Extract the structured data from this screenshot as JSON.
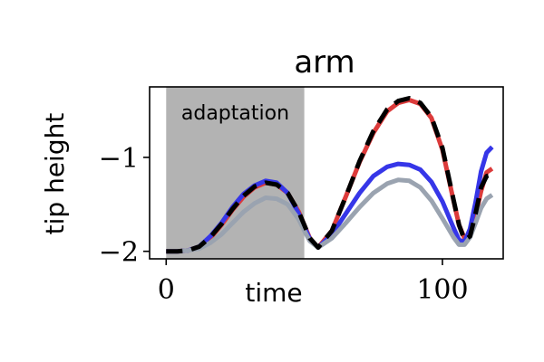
{
  "chart_data": {
    "type": "line",
    "title": "arm",
    "xlabel": "time",
    "ylabel": "tip height",
    "xlim": [
      -6,
      122
    ],
    "ylim": [
      -2.08,
      -0.25
    ],
    "x_ticks": [
      0,
      100
    ],
    "x_tick_labels": [
      "0",
      "100"
    ],
    "y_ticks": [
      -2,
      -1
    ],
    "y_tick_labels": [
      "−2",
      "−1"
    ],
    "grid": false,
    "shaded_region": {
      "label": "adaptation",
      "x_start": 0,
      "x_end": 50,
      "color": "#b3b3b3"
    },
    "x": [
      0,
      4,
      8,
      12,
      16,
      20,
      24,
      28,
      32,
      36,
      40,
      44,
      48,
      50,
      52,
      55,
      60,
      65,
      70,
      75,
      80,
      84,
      88,
      92,
      96,
      100,
      104,
      106,
      108,
      110,
      112,
      114,
      116,
      118
    ],
    "series": [
      {
        "color": "#dc3b3b",
        "width": 5,
        "dash": "",
        "values": [
          -2.0,
          -2.0,
          -1.99,
          -1.95,
          -1.86,
          -1.72,
          -1.56,
          -1.42,
          -1.32,
          -1.27,
          -1.29,
          -1.38,
          -1.58,
          -1.72,
          -1.86,
          -1.96,
          -1.78,
          -1.42,
          -1.05,
          -0.74,
          -0.51,
          -0.42,
          -0.39,
          -0.43,
          -0.58,
          -0.92,
          -1.46,
          -1.72,
          -1.86,
          -1.82,
          -1.62,
          -1.36,
          -1.16,
          -1.12
        ]
      },
      {
        "color": "#3636e8",
        "width": 5,
        "dash": "",
        "values": [
          -2.0,
          -2.0,
          -1.99,
          -1.95,
          -1.84,
          -1.7,
          -1.53,
          -1.39,
          -1.3,
          -1.25,
          -1.27,
          -1.38,
          -1.6,
          -1.74,
          -1.87,
          -1.96,
          -1.82,
          -1.6,
          -1.38,
          -1.2,
          -1.1,
          -1.07,
          -1.08,
          -1.13,
          -1.26,
          -1.47,
          -1.75,
          -1.88,
          -1.9,
          -1.76,
          -1.48,
          -1.15,
          -0.95,
          -0.89
        ]
      },
      {
        "color": "#9aa3b0",
        "width": 5,
        "dash": "",
        "values": [
          -2.0,
          -2.0,
          -1.99,
          -1.97,
          -1.91,
          -1.82,
          -1.7,
          -1.58,
          -1.49,
          -1.43,
          -1.44,
          -1.5,
          -1.66,
          -1.78,
          -1.89,
          -1.96,
          -1.86,
          -1.7,
          -1.53,
          -1.38,
          -1.28,
          -1.24,
          -1.25,
          -1.32,
          -1.46,
          -1.65,
          -1.85,
          -1.93,
          -1.93,
          -1.85,
          -1.7,
          -1.54,
          -1.44,
          -1.4
        ]
      },
      {
        "color": "#000000",
        "width": 5,
        "dash": "18,10",
        "values": [
          -2.0,
          -2.0,
          -1.99,
          -1.95,
          -1.85,
          -1.71,
          -1.55,
          -1.41,
          -1.31,
          -1.27,
          -1.29,
          -1.38,
          -1.58,
          -1.72,
          -1.86,
          -1.96,
          -1.78,
          -1.42,
          -1.04,
          -0.72,
          -0.49,
          -0.4,
          -0.37,
          -0.42,
          -0.57,
          -0.9,
          -1.45,
          -1.72,
          -1.88,
          -1.84,
          -1.6,
          -1.32,
          -1.2,
          -1.18
        ]
      }
    ]
  }
}
